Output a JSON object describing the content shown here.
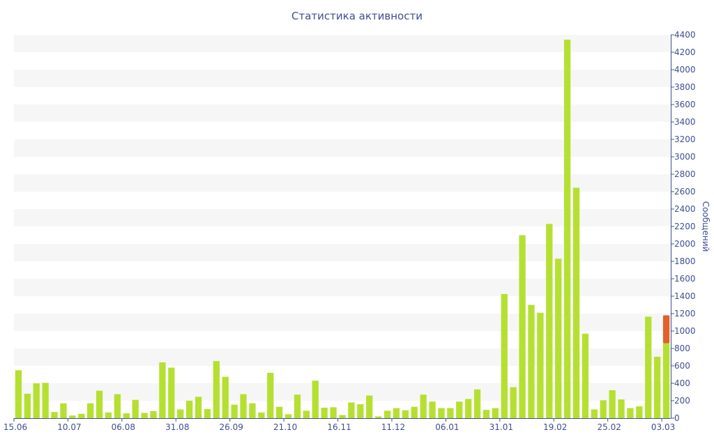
{
  "chart_data": {
    "type": "bar",
    "title": "Статистика активности",
    "xlabel": "",
    "ylabel": "Сообщений",
    "ylim": [
      0,
      4400
    ],
    "y_ticks": [
      0,
      200,
      400,
      600,
      800,
      1000,
      1200,
      1400,
      1600,
      1800,
      2000,
      2200,
      2400,
      2600,
      2800,
      3000,
      3200,
      3400,
      3600,
      3800,
      4000,
      4200,
      4400
    ],
    "y_axis_side": "right",
    "x_tick_labels": [
      {
        "label": "15.06",
        "index": 0
      },
      {
        "label": "10.07",
        "index": 6
      },
      {
        "label": "06.08",
        "index": 12
      },
      {
        "label": "31.08",
        "index": 18
      },
      {
        "label": "26.09",
        "index": 24
      },
      {
        "label": "21.10",
        "index": 30
      },
      {
        "label": "16.11",
        "index": 36
      },
      {
        "label": "11.12",
        "index": 42
      },
      {
        "label": "06.01",
        "index": 48
      },
      {
        "label": "31.01",
        "index": 54
      },
      {
        "label": "19.02",
        "index": 60
      },
      {
        "label": "25.02",
        "index": 66
      },
      {
        "label": "03.03",
        "index": 72
      }
    ],
    "grid": "alternating horizontal bands",
    "colors": {
      "bar": "#b5e032",
      "highlight": "#e0622a",
      "text": "#3d4f8f",
      "band": "#f6f6f6",
      "axis": "#3d4f8f"
    },
    "series": [
      {
        "values": [
          550,
          280,
          400,
          405,
          70,
          170,
          30,
          50,
          170,
          315,
          65,
          275,
          55,
          210,
          60,
          80,
          640,
          580,
          100,
          200,
          245,
          105,
          655,
          475,
          155,
          275,
          170,
          65,
          520,
          130,
          45,
          270,
          85,
          430,
          120,
          125,
          35,
          180,
          160,
          260,
          20,
          85,
          115,
          90,
          130,
          270,
          190,
          115,
          115,
          190,
          220,
          330,
          95,
          115,
          1425,
          355,
          2100,
          1300,
          1210,
          2230,
          1830,
          4345,
          2645,
          970,
          100,
          205,
          320,
          215,
          115,
          135,
          1165,
          705,
          860
        ]
      },
      {
        "values": [
          0,
          0,
          0,
          0,
          0,
          0,
          0,
          0,
          0,
          0,
          0,
          0,
          0,
          0,
          0,
          0,
          0,
          0,
          0,
          0,
          0,
          0,
          0,
          0,
          0,
          0,
          0,
          0,
          0,
          0,
          0,
          0,
          0,
          0,
          0,
          0,
          0,
          0,
          0,
          0,
          0,
          0,
          0,
          0,
          0,
          0,
          0,
          0,
          0,
          0,
          0,
          0,
          0,
          0,
          0,
          0,
          0,
          0,
          0,
          0,
          0,
          0,
          0,
          0,
          0,
          0,
          0,
          0,
          0,
          0,
          0,
          0,
          320
        ]
      }
    ]
  }
}
